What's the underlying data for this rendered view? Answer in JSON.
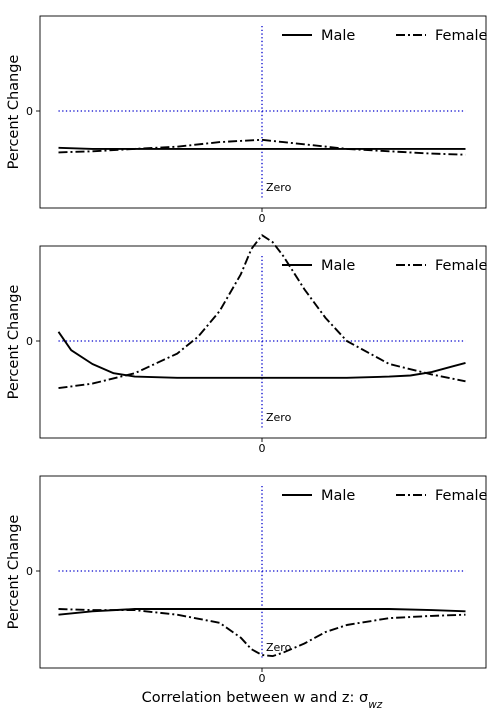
{
  "chart_data": [
    {
      "type": "line",
      "ylabel": "Percent Change",
      "xlabel": "",
      "xlim": [
        -1,
        1
      ],
      "ylim": [
        -1,
        1
      ],
      "xticks": [
        {
          "value": 0,
          "label": "0"
        }
      ],
      "yticks": [
        {
          "value": 0,
          "label": "0"
        }
      ],
      "hline": {
        "y": 0,
        "style": "dotted",
        "color": "#0000cc"
      },
      "vline": {
        "x": 0,
        "style": "dotted",
        "color": "#0000cc"
      },
      "annotation": "Zero",
      "legend": {
        "placement": "top-right"
      },
      "series": [
        {
          "name": "Male",
          "style": "solid",
          "color": "#000000",
          "x": [
            -0.96,
            -0.8,
            -0.6,
            -0.4,
            -0.2,
            0,
            0.2,
            0.4,
            0.6,
            0.8,
            0.96
          ],
          "values": [
            -0.32,
            -0.33,
            -0.33,
            -0.33,
            -0.33,
            -0.33,
            -0.33,
            -0.33,
            -0.33,
            -0.33,
            -0.33
          ]
        },
        {
          "name": "Female",
          "style": "dashdot",
          "color": "#000000",
          "x": [
            -0.96,
            -0.8,
            -0.6,
            -0.4,
            -0.2,
            -0.1,
            0,
            0.1,
            0.2,
            0.4,
            0.6,
            0.8,
            0.96
          ],
          "values": [
            -0.36,
            -0.35,
            -0.33,
            -0.31,
            -0.27,
            -0.26,
            -0.25,
            -0.27,
            -0.29,
            -0.33,
            -0.35,
            -0.37,
            -0.38
          ]
        }
      ]
    },
    {
      "type": "line",
      "ylabel": "Percent Change",
      "xlabel": "",
      "xlim": [
        -1,
        1
      ],
      "ylim": [
        -1,
        1
      ],
      "xticks": [
        {
          "value": 0,
          "label": "0"
        }
      ],
      "yticks": [
        {
          "value": 0,
          "label": "0"
        }
      ],
      "hline": {
        "y": 0,
        "style": "dotted",
        "color": "#0000cc"
      },
      "vline": {
        "x": 0,
        "style": "dotted",
        "color": "#0000cc"
      },
      "annotation": "Zero",
      "legend": {
        "placement": "top-right"
      },
      "series": [
        {
          "name": "Male",
          "style": "solid",
          "color": "#000000",
          "x": [
            -0.96,
            -0.9,
            -0.8,
            -0.7,
            -0.6,
            -0.4,
            -0.2,
            0,
            0.2,
            0.4,
            0.6,
            0.7,
            0.8,
            0.9,
            0.96
          ],
          "values": [
            0.08,
            -0.08,
            -0.2,
            -0.28,
            -0.31,
            -0.32,
            -0.32,
            -0.32,
            -0.32,
            -0.32,
            -0.31,
            -0.3,
            -0.27,
            -0.22,
            -0.19
          ]
        },
        {
          "name": "Female",
          "style": "dashdot",
          "color": "#000000",
          "x": [
            -0.96,
            -0.8,
            -0.6,
            -0.4,
            -0.3,
            -0.2,
            -0.1,
            -0.05,
            0,
            0.05,
            0.1,
            0.2,
            0.3,
            0.4,
            0.6,
            0.8,
            0.96
          ],
          "values": [
            -0.41,
            -0.37,
            -0.28,
            -0.11,
            0.04,
            0.26,
            0.58,
            0.8,
            0.92,
            0.86,
            0.74,
            0.45,
            0.2,
            0.0,
            -0.2,
            -0.29,
            -0.35
          ]
        }
      ]
    },
    {
      "type": "line",
      "ylabel": "Percent Change",
      "xlabel": "Correlation between w and z: σ",
      "xlabel_subscript": "wz",
      "xlim": [
        -1,
        1
      ],
      "ylim": [
        -1,
        1
      ],
      "xticks": [
        {
          "value": 0,
          "label": "0"
        }
      ],
      "yticks": [
        {
          "value": 0,
          "label": "0"
        }
      ],
      "hline": {
        "y": 0,
        "style": "dotted",
        "color": "#0000cc"
      },
      "vline": {
        "x": 0,
        "style": "dotted",
        "color": "#0000cc"
      },
      "annotation": "Zero",
      "legend": {
        "placement": "top-right"
      },
      "series": [
        {
          "name": "Male",
          "style": "solid",
          "color": "#000000",
          "x": [
            -0.96,
            -0.8,
            -0.6,
            -0.4,
            -0.2,
            0,
            0.2,
            0.4,
            0.6,
            0.8,
            0.96
          ],
          "values": [
            -0.38,
            -0.35,
            -0.33,
            -0.33,
            -0.33,
            -0.33,
            -0.33,
            -0.33,
            -0.33,
            -0.34,
            -0.35
          ]
        },
        {
          "name": "Female",
          "style": "dashdot",
          "color": "#000000",
          "x": [
            -0.96,
            -0.8,
            -0.6,
            -0.4,
            -0.2,
            -0.1,
            -0.05,
            0,
            0.05,
            0.1,
            0.2,
            0.3,
            0.4,
            0.6,
            0.8,
            0.96
          ],
          "values": [
            -0.33,
            -0.34,
            -0.34,
            -0.38,
            -0.45,
            -0.58,
            -0.68,
            -0.73,
            -0.74,
            -0.71,
            -0.63,
            -0.53,
            -0.47,
            -0.41,
            -0.39,
            -0.38
          ]
        }
      ]
    }
  ]
}
